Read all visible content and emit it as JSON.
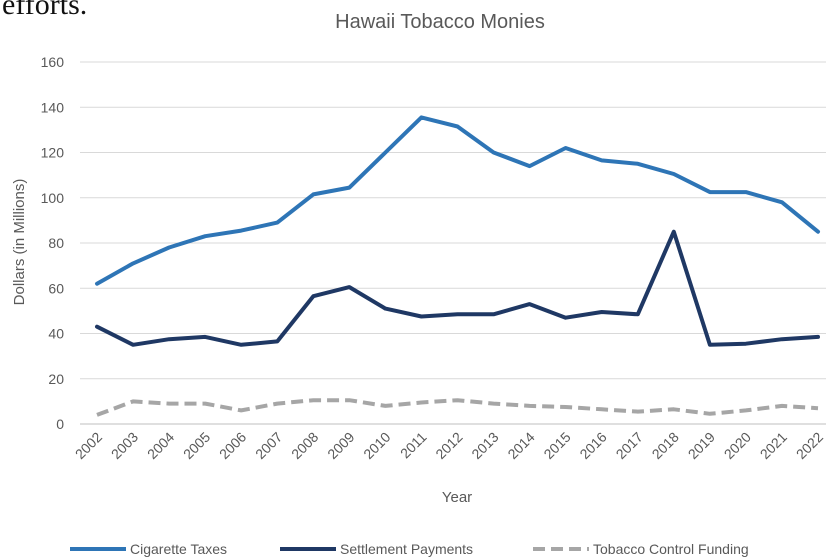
{
  "page_fragment": "efforts.",
  "chart_data": {
    "type": "line",
    "title": "Hawaii Tobacco Monies",
    "xlabel": "Year",
    "ylabel": "Dollars (in Millions)",
    "ylim": [
      0,
      160
    ],
    "yticks": [
      0,
      20,
      40,
      60,
      80,
      100,
      120,
      140,
      160
    ],
    "grid": true,
    "legend_position": "bottom",
    "categories": [
      "2002",
      "2003",
      "2004",
      "2005",
      "2006",
      "2007",
      "2008",
      "2009",
      "2010",
      "2011",
      "2012",
      "2013",
      "2014",
      "2015",
      "2016",
      "2017",
      "2018",
      "2019",
      "2020",
      "2021",
      "2022"
    ],
    "series": [
      {
        "name": "Cigarette Taxes",
        "color": "#2e75b6",
        "dash": "solid",
        "values": [
          62,
          71,
          78,
          83,
          85.5,
          89,
          101.5,
          104.5,
          120,
          135.5,
          131.5,
          120,
          114,
          122,
          116.5,
          115,
          110.5,
          102.5,
          102.5,
          98,
          85
        ]
      },
      {
        "name": "Settlement Payments",
        "color": "#1f3864",
        "dash": "solid",
        "values": [
          43,
          35,
          37.5,
          38.5,
          35,
          36.5,
          56.5,
          60.5,
          51,
          47.5,
          48.5,
          48.5,
          53,
          47,
          49.5,
          48.5,
          85,
          35,
          35.5,
          37.5,
          38.5
        ]
      },
      {
        "name": "Tobacco Control Funding",
        "color": "#a6a6a6",
        "dash": "dashed",
        "values": [
          4,
          10,
          9,
          9,
          6,
          9,
          10.5,
          10.5,
          8,
          9.5,
          10.5,
          9,
          8,
          7.5,
          6.5,
          5.5,
          6.5,
          4.5,
          6,
          8,
          7
        ]
      }
    ]
  }
}
